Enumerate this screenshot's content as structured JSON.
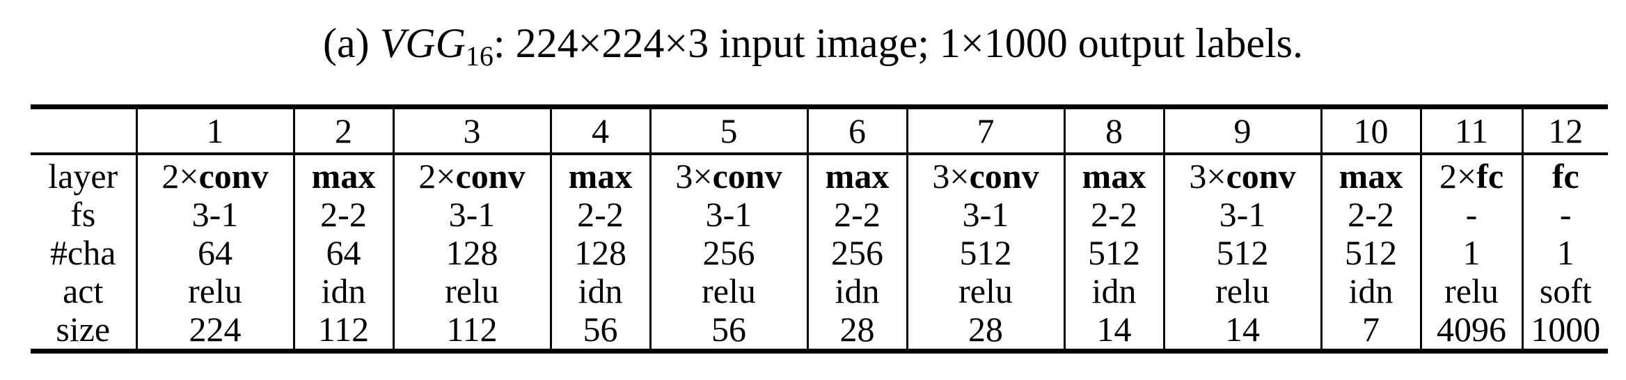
{
  "caption": {
    "prefix": "(a) ",
    "model": "VGG",
    "model_sub": "16",
    "rest": ": 224×224×3 input image; 1×1000 output labels."
  },
  "table": {
    "columns": [
      "1",
      "2",
      "3",
      "4",
      "5",
      "6",
      "7",
      "8",
      "9",
      "10",
      "11",
      "12"
    ],
    "rows": [
      {
        "label": "layer",
        "cells": [
          {
            "mult": "2×",
            "op": "conv"
          },
          {
            "mult": "",
            "op": "max"
          },
          {
            "mult": "2×",
            "op": "conv"
          },
          {
            "mult": "",
            "op": "max"
          },
          {
            "mult": "3×",
            "op": "conv"
          },
          {
            "mult": "",
            "op": "max"
          },
          {
            "mult": "3×",
            "op": "conv"
          },
          {
            "mult": "",
            "op": "max"
          },
          {
            "mult": "3×",
            "op": "conv"
          },
          {
            "mult": "",
            "op": "max"
          },
          {
            "mult": "2×",
            "op": "fc"
          },
          {
            "mult": "",
            "op": "fc"
          }
        ]
      },
      {
        "label": "fs",
        "cells": [
          "3-1",
          "2-2",
          "3-1",
          "2-2",
          "3-1",
          "2-2",
          "3-1",
          "2-2",
          "3-1",
          "2-2",
          "-",
          "-"
        ]
      },
      {
        "label": "#cha",
        "cells": [
          "64",
          "64",
          "128",
          "128",
          "256",
          "256",
          "512",
          "512",
          "512",
          "512",
          "1",
          "1"
        ]
      },
      {
        "label": "act",
        "cells": [
          "relu",
          "idn",
          "relu",
          "idn",
          "relu",
          "idn",
          "relu",
          "idn",
          "relu",
          "idn",
          "relu",
          "soft"
        ]
      },
      {
        "label": "size",
        "cells": [
          "224",
          "112",
          "112",
          "56",
          "56",
          "28",
          "28",
          "14",
          "14",
          "7",
          "4096",
          "1000"
        ]
      }
    ]
  }
}
